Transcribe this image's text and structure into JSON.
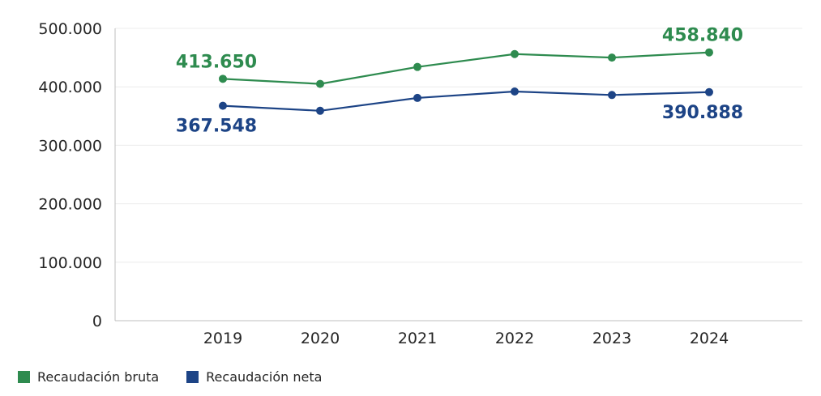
{
  "chart_data": {
    "type": "line",
    "title": "",
    "xlabel": "",
    "ylabel": "",
    "categories": [
      "2019",
      "2020",
      "2021",
      "2022",
      "2023",
      "2024"
    ],
    "ylim": [
      0,
      500000
    ],
    "yticks": [
      0,
      100000,
      200000,
      300000,
      400000,
      500000
    ],
    "ytick_labels": [
      "0",
      "100.000",
      "200.000",
      "300.000",
      "400.000",
      "500.000"
    ],
    "grid": true,
    "legend_position": "bottom-left",
    "series": [
      {
        "name": "Recaudación bruta",
        "color": "#2e8b4f",
        "values": [
          413650,
          405000,
          434000,
          456000,
          450000,
          458840
        ],
        "labels": [
          {
            "index": 0,
            "text": "413.650",
            "placement": "above"
          },
          {
            "index": 5,
            "text": "458.840",
            "placement": "above"
          }
        ]
      },
      {
        "name": "Recaudación neta",
        "color": "#1d4486",
        "values": [
          367548,
          359000,
          381000,
          392000,
          386000,
          390888
        ],
        "labels": [
          {
            "index": 0,
            "text": "367.548",
            "placement": "below"
          },
          {
            "index": 5,
            "text": "390.888",
            "placement": "below"
          }
        ]
      }
    ]
  }
}
